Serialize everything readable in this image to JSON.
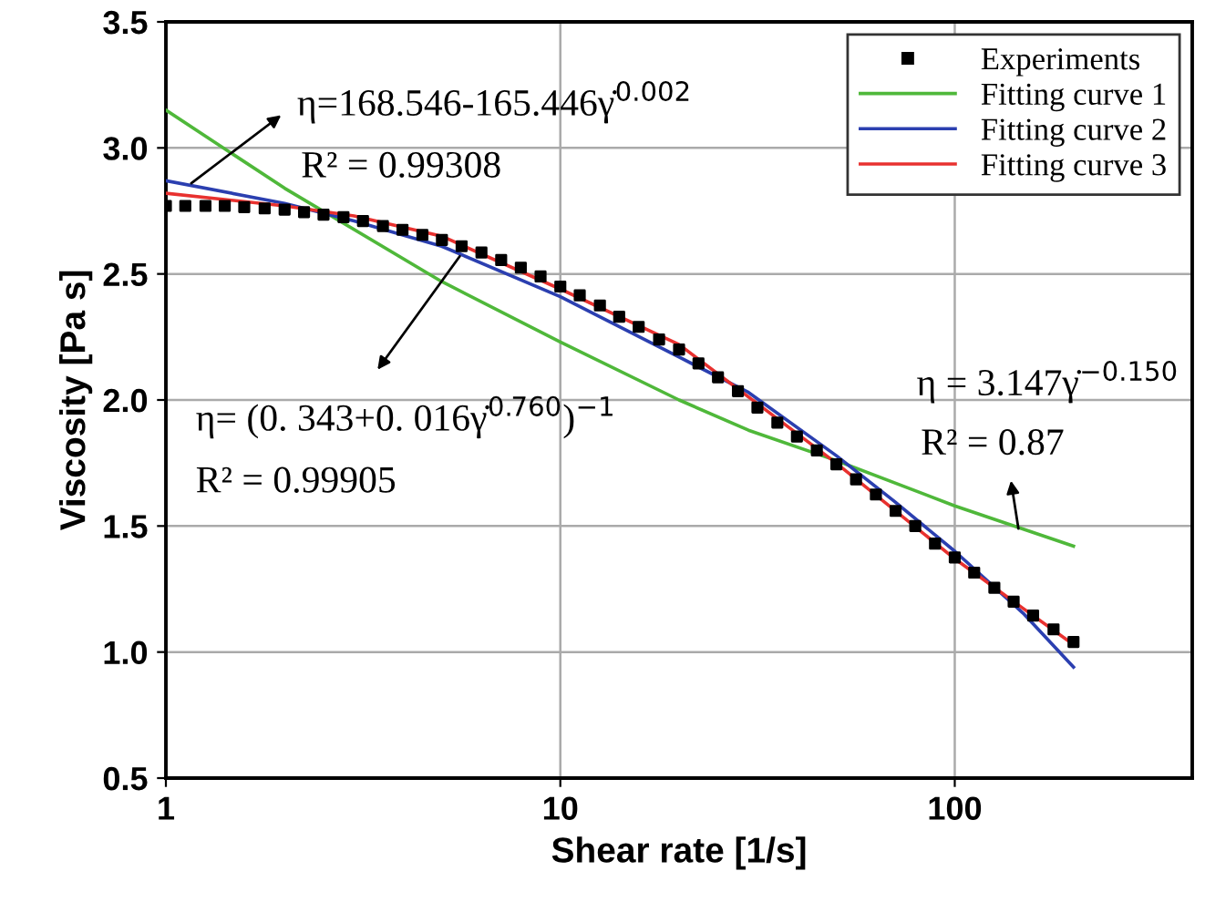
{
  "chart_data": {
    "type": "scatter",
    "xlabel": "Shear rate [1/s]",
    "ylabel": "Viscosity [Pa s]",
    "log": "x",
    "xlim": [
      1,
      400
    ],
    "xticks": [
      1,
      10,
      100
    ],
    "ylim": [
      0.5,
      3.5
    ],
    "yticks": [
      0.5,
      {
        "value": 1,
        "label": "1.0"
      },
      1.5,
      {
        "value": 2,
        "label": "2.0"
      },
      2.5,
      {
        "value": 3,
        "label": "3.0"
      },
      3.5
    ],
    "grid": true,
    "legend": "top right",
    "series": [
      {
        "name": "Experiments",
        "marker": "square",
        "color": "#000000",
        "x": [
          1,
          1.12,
          1.26,
          1.41,
          1.58,
          1.78,
          2,
          2.24,
          2.51,
          2.82,
          3.16,
          3.55,
          3.98,
          4.47,
          5.01,
          5.62,
          6.31,
          7.08,
          7.94,
          8.91,
          10,
          11.2,
          12.6,
          14.1,
          15.8,
          17.8,
          20,
          22.4,
          25.1,
          28.2,
          31.6,
          35.5,
          39.8,
          44.7,
          50.1,
          56.2,
          63.1,
          70.8,
          79.4,
          89.1,
          100,
          112,
          126,
          141,
          158,
          178,
          200
        ],
        "values": [
          2.77,
          2.77,
          2.77,
          2.77,
          2.765,
          2.76,
          2.755,
          2.745,
          2.735,
          2.725,
          2.71,
          2.69,
          2.675,
          2.655,
          2.635,
          2.61,
          2.585,
          2.555,
          2.525,
          2.49,
          2.45,
          2.415,
          2.375,
          2.33,
          2.29,
          2.24,
          2.2,
          2.145,
          2.09,
          2.035,
          1.97,
          1.91,
          1.855,
          1.8,
          1.745,
          1.685,
          1.625,
          1.56,
          1.5,
          1.43,
          1.375,
          1.315,
          1.255,
          1.2,
          1.145,
          1.09,
          1.04
        ]
      },
      {
        "name": "Fitting curve 1",
        "type": "line",
        "color": "#4fb83a",
        "x": [
          1,
          2,
          5,
          10,
          20,
          30,
          50,
          100,
          200
        ],
        "values": [
          3.15,
          2.84,
          2.47,
          2.23,
          2.0,
          1.88,
          1.76,
          1.58,
          1.42
        ]
      },
      {
        "name": "Fitting curve 2",
        "type": "line",
        "color": "#2b3fb0",
        "x": [
          1,
          2,
          3,
          5,
          10,
          20,
          30,
          50,
          70,
          100,
          150,
          200
        ],
        "values": [
          2.87,
          2.78,
          2.71,
          2.61,
          2.41,
          2.17,
          2.03,
          1.78,
          1.6,
          1.4,
          1.15,
          0.94
        ]
      },
      {
        "name": "Fitting curve 3",
        "type": "line",
        "color": "#e8312f",
        "x": [
          1,
          2,
          3,
          5,
          10,
          20,
          50,
          100,
          150,
          200
        ],
        "values": [
          2.82,
          2.77,
          2.73,
          2.65,
          2.44,
          2.22,
          1.75,
          1.37,
          1.17,
          1.03
        ]
      }
    ],
    "annotations": [
      {
        "text": "η=168.546-165.446γ̇$^{0.002}$",
        "x": 1.16,
        "y": 2.86
      },
      "R² = 0.99308",
      {
        "text": "η= (0. 343+0. 016γ̇$^{0.760}$)$^{−1}$",
        "x": 5.56,
        "y": 2.57
      },
      "R² = 0.99905",
      "η = 3.147γ̇$^{−0.150}$",
      {
        "text": "R² = 0.87",
        "x": 145,
        "y": 1.49
      }
    ]
  }
}
